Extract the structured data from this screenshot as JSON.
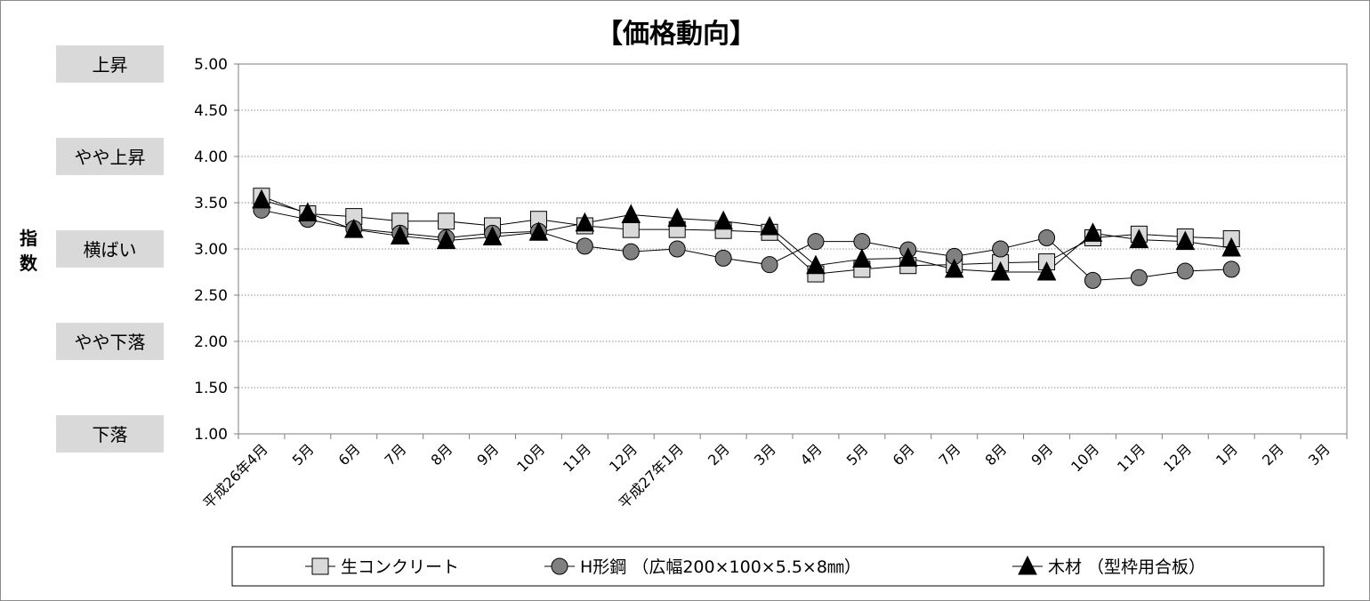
{
  "chart_data": {
    "type": "line",
    "title": "【価格動向】",
    "ylabel": "指数",
    "ylim": [
      1.0,
      5.0
    ],
    "ytick_labels": [
      "1.00",
      "1.50",
      "2.00",
      "2.50",
      "3.00",
      "3.50",
      "4.00",
      "4.50",
      "5.00"
    ],
    "grid": "horizontal dotted",
    "legend_position": "bottom",
    "levels": [
      {
        "label": "上昇",
        "value": 5.0
      },
      {
        "label": "やや上昇",
        "value": 4.0
      },
      {
        "label": "横ばい",
        "value": 3.0
      },
      {
        "label": "やや下落",
        "value": 2.0
      },
      {
        "label": "下落",
        "value": 1.0
      }
    ],
    "categories": [
      "平成26年4月",
      "5月",
      "6月",
      "7月",
      "8月",
      "9月",
      "10月",
      "11月",
      "12月",
      "平成27年1月",
      "2月",
      "3月",
      "4月",
      "5月",
      "6月",
      "7月",
      "8月",
      "9月",
      "10月",
      "11月",
      "12月",
      "1月",
      "2月",
      "3月"
    ],
    "series": [
      {
        "name": "生コンクリート",
        "marker": "square",
        "marker_color": "#d9d9d9",
        "values": [
          3.57,
          3.38,
          3.35,
          3.3,
          3.3,
          3.25,
          3.32,
          3.25,
          3.21,
          3.21,
          3.2,
          3.18,
          2.73,
          2.78,
          2.82,
          2.83,
          2.85,
          2.86,
          3.12,
          3.16,
          3.13,
          3.11,
          null,
          null
        ]
      },
      {
        "name": "H形鋼 （広幅200×100×5.5×8㎜）",
        "marker": "circle",
        "marker_color": "#808080",
        "values": [
          3.42,
          3.32,
          3.22,
          3.17,
          3.12,
          3.17,
          3.19,
          3.03,
          2.97,
          3.0,
          2.9,
          2.83,
          3.08,
          3.08,
          2.99,
          2.92,
          3.0,
          3.12,
          2.66,
          2.69,
          2.76,
          2.78,
          null,
          null
        ]
      },
      {
        "name": "木材 （型枠用合板）",
        "marker": "triangle",
        "marker_color": "#000000",
        "values": [
          3.53,
          3.39,
          3.21,
          3.14,
          3.09,
          3.13,
          3.18,
          3.28,
          3.37,
          3.33,
          3.3,
          3.24,
          2.82,
          2.89,
          2.9,
          2.78,
          2.75,
          2.75,
          3.17,
          3.1,
          3.08,
          3.01,
          null,
          null
        ]
      }
    ]
  }
}
